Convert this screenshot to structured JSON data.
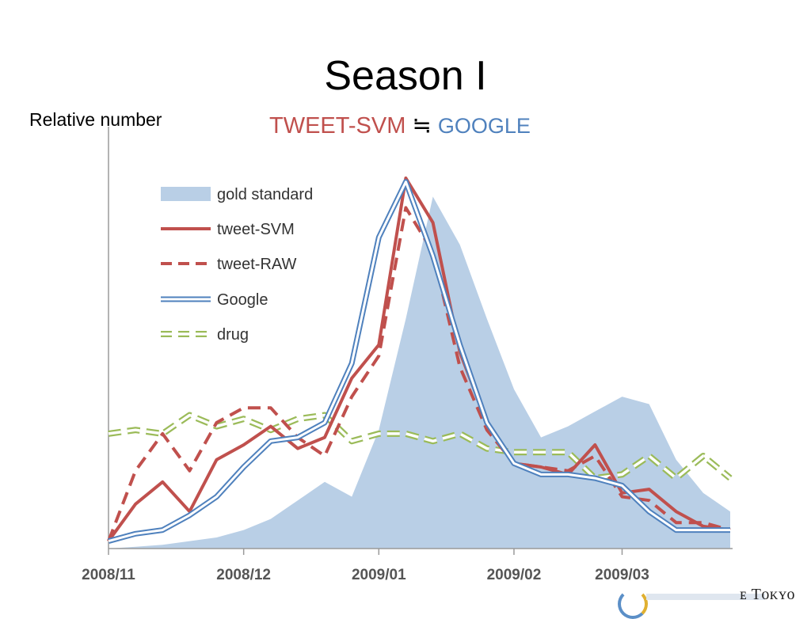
{
  "slide": {
    "title": "Season I",
    "ylabel": "Relative number",
    "subtitle_svm": "TWEET-SVM",
    "subtitle_approx": "≒",
    "subtitle_google": "GOOGLE"
  },
  "colors": {
    "gold": "#b9cfe6",
    "svm": "#c0504d",
    "raw": "#c0504d",
    "google": "#4f81bd",
    "drug": "#9bbb59",
    "svm_text": "#c0504d",
    "google_text": "#4f81bd"
  },
  "chart_data": {
    "type": "line",
    "x_tick_labels": [
      "2008/11",
      "2008/12",
      "2009/01",
      "2009/02",
      "2009/03"
    ],
    "x_tick_index": [
      0,
      5,
      10,
      15,
      19
    ],
    "points": 24,
    "ylim": [
      0,
      100
    ],
    "legend_position": "top-left",
    "series": [
      {
        "name": "gold standard",
        "style": "area",
        "values": [
          0,
          0.5,
          1,
          2,
          3,
          5,
          8,
          13,
          18,
          14,
          32,
          62,
          95,
          82,
          62,
          43,
          30,
          33,
          37,
          41,
          39,
          24,
          15,
          10
        ]
      },
      {
        "name": "tweet-SVM",
        "style": "solid",
        "values": [
          2,
          12,
          18,
          10,
          24,
          28,
          33,
          27,
          30,
          46,
          55,
          100,
          88,
          53,
          34,
          23,
          22,
          20,
          28,
          15,
          16,
          10,
          6,
          5
        ]
      },
      {
        "name": "tweet-RAW",
        "style": "dashed",
        "values": [
          2,
          21,
          31,
          21,
          34,
          38,
          38,
          30,
          25,
          41,
          52,
          92,
          80,
          49,
          32,
          23,
          22,
          21,
          25,
          14,
          13,
          7,
          7,
          5
        ]
      },
      {
        "name": "Google",
        "style": "double",
        "values": [
          2,
          4,
          5,
          9,
          14,
          22,
          29,
          30,
          34,
          50,
          84,
          99,
          79,
          55,
          34,
          23,
          20,
          20,
          19,
          17,
          10,
          5,
          5,
          5
        ]
      },
      {
        "name": "drug",
        "style": "dashed-oval",
        "values": [
          31,
          32,
          31,
          36,
          33,
          35,
          32,
          35,
          36,
          29,
          31,
          31,
          29,
          31,
          27,
          26,
          26,
          26,
          19,
          20,
          25,
          19,
          25,
          19
        ]
      }
    ]
  },
  "logo": {
    "text": "ᴇ Tᴏᴋʏᴏ"
  }
}
